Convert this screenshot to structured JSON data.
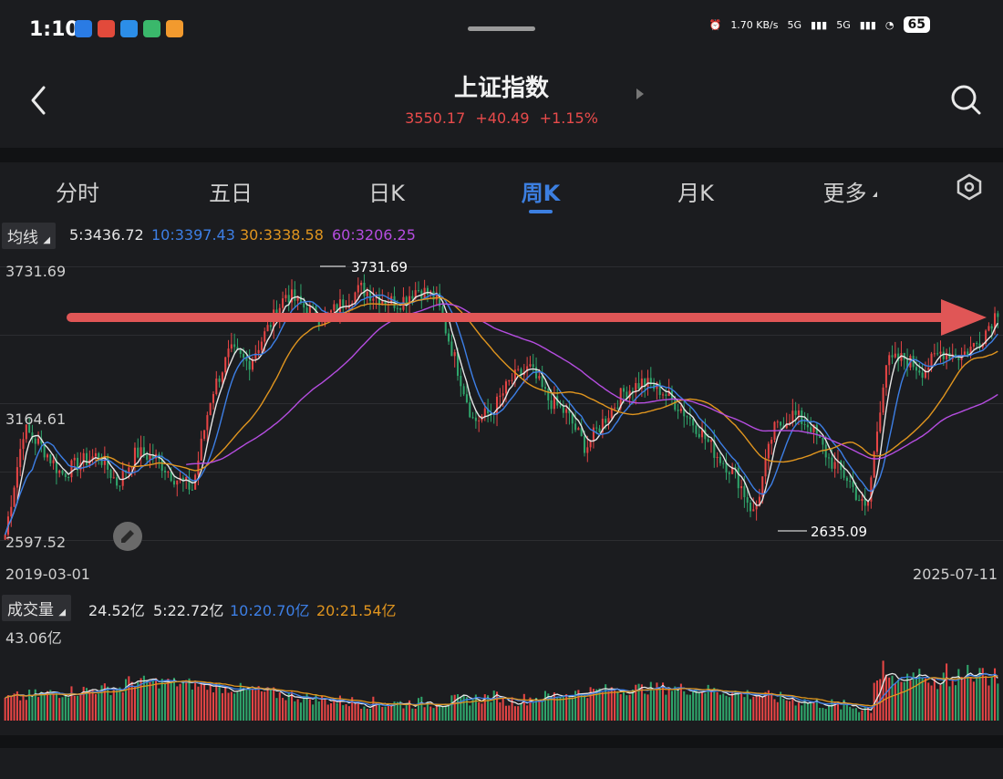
{
  "status_bar": {
    "time": "1:10",
    "net_speed": "1.70 KB/s",
    "signal1": "5G",
    "signal2": "5G",
    "battery": "65"
  },
  "header": {
    "title": "上证指数",
    "price": "3550.17",
    "change": "+40.49",
    "change_pct": "+1.15%"
  },
  "tabs": [
    {
      "label": "分时"
    },
    {
      "label": "五日"
    },
    {
      "label": "日K"
    },
    {
      "label": "周K"
    },
    {
      "label": "月K"
    },
    {
      "label": "更多"
    }
  ],
  "active_tab": "周K",
  "ma_legend": {
    "button": "均线",
    "ma5": "5:3436.72",
    "ma10": "10:3397.43",
    "ma30": "30:3338.58",
    "ma60": "60:3206.25"
  },
  "colors": {
    "up": "#e64545",
    "down": "#2fa56b",
    "ma5": "#e6e6e6",
    "ma10": "#3d7fe6",
    "ma30": "#e0951f",
    "ma60": "#b54de0",
    "accent": "#3c7fe0",
    "annotation_arrow": "#e05656"
  },
  "price_axis": {
    "high_label": "3731.69",
    "mid_label": "3164.61",
    "low_label": "2597.52"
  },
  "annotations": {
    "max_label": "3731.69",
    "min_label": "2635.09"
  },
  "dates": {
    "start": "2019-03-01",
    "end": "2025-07-11"
  },
  "volume_legend": {
    "button": "成交量",
    "current": "24.52亿",
    "ma5": "5:22.72亿",
    "ma10": "10:20.70亿",
    "ma20": "20:21.54亿"
  },
  "volume_axis": {
    "max_label": "43.06亿"
  },
  "chart_data": {
    "type": "candlestick",
    "title": "上证指数 周K",
    "x_range": [
      "2019-03-01",
      "2025-07-11"
    ],
    "ylim": [
      2597.52,
      3731.69
    ],
    "max_marker": 3731.69,
    "min_marker": 2635.09,
    "close_trend": [
      2620,
      3060,
      2980,
      2870,
      2920,
      2950,
      2830,
      2960,
      2940,
      2860,
      2810,
      3200,
      3380,
      3330,
      3470,
      3620,
      3560,
      3510,
      3580,
      3640,
      3600,
      3580,
      3640,
      3600,
      3350,
      3090,
      3130,
      3260,
      3310,
      3180,
      3120,
      2980,
      3100,
      3210,
      3250,
      3220,
      3150,
      3060,
      2950,
      2870,
      2700,
      3050,
      3120,
      3070,
      2930,
      2850,
      2710,
      3330,
      3350,
      3300,
      3380,
      3360,
      3420,
      3550
    ],
    "ma_latest": {
      "ma5": 3436.72,
      "ma10": 3397.43,
      "ma30": 3338.58,
      "ma60": 3206.25
    },
    "volume_latest": 24.52,
    "volume_ma": {
      "ma5": 22.72,
      "ma10": 20.7,
      "ma20": 21.54
    },
    "volume_max": 43.06,
    "volume_unit": "亿"
  }
}
